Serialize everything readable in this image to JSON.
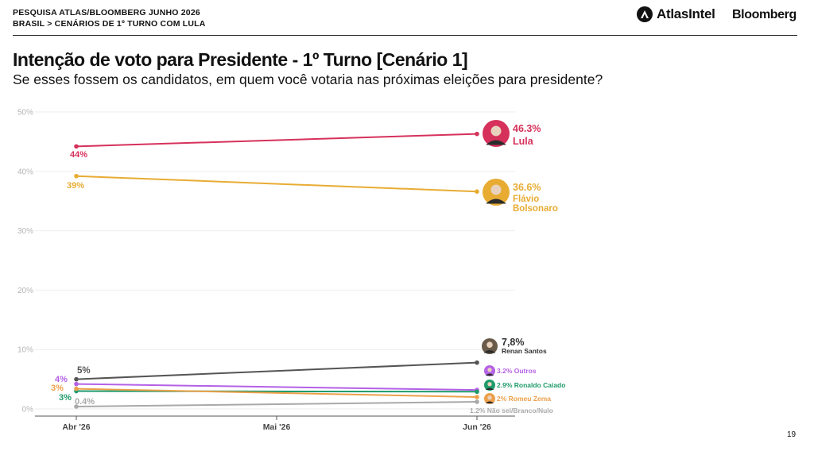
{
  "header": {
    "line1": "PESQUISA ATLAS/BLOOMBERG JUNHO 2026",
    "line2": "BRASIL > CENÁRIOS DE 1º TURNO COM LULA",
    "brand_atlas": "AtlasIntel",
    "brand_bloomberg": "Bloomberg"
  },
  "page_number": "19",
  "chart_data": {
    "type": "line",
    "title": "Intenção de voto para Presidente  - 1º Turno [Cenário 1]",
    "subtitle": "Se esses fossem os candidatos, em quem você votaria nas próximas eleições para presidente?",
    "x": [
      "Abr '26",
      "Mai '26",
      "Jun '26"
    ],
    "y_ticks": [
      "0%",
      "10%",
      "20%",
      "30%",
      "40%",
      "50%"
    ],
    "ylim": [
      0,
      50
    ],
    "grid": true,
    "series": [
      {
        "name": "Lula",
        "color": "#d6315b",
        "points": [
          [
            0,
            44.2
          ],
          [
            2,
            46.3
          ]
        ],
        "start_label": "44%",
        "end_label": "46.3%",
        "icon": "lula-avatar-icon"
      },
      {
        "name": "Flávio Bolsonaro",
        "color": "#e8ac33",
        "points": [
          [
            0,
            39.2
          ],
          [
            2,
            36.6
          ]
        ],
        "start_label": "39%",
        "end_label": "36.6%",
        "icon": "flavio-avatar-icon"
      },
      {
        "name": "Renan Santos",
        "color": "#555555",
        "points": [
          [
            0,
            5.0
          ],
          [
            2,
            7.8
          ]
        ],
        "start_label": "5%",
        "end_label": "7,8%",
        "icon": "renan-avatar-icon"
      },
      {
        "name": "Outros",
        "color": "#b461e6",
        "points": [
          [
            0,
            4.2
          ],
          [
            2,
            3.2
          ]
        ],
        "start_label": "4%",
        "end_label": "3.2%",
        "icon": "outros-avatar-icon"
      },
      {
        "name": "Ronaldo Caiado",
        "color": "#1e9a6b",
        "points": [
          [
            0,
            3.0
          ],
          [
            2,
            2.9
          ]
        ],
        "start_label": "3%",
        "end_label": "2.9%",
        "icon": "caiado-avatar-icon"
      },
      {
        "name": "Romeu Zema",
        "color": "#eda04a",
        "points": [
          [
            0,
            3.4
          ],
          [
            2,
            2.0
          ]
        ],
        "start_label": "3%",
        "end_label": "2%",
        "icon": "zema-avatar-icon"
      },
      {
        "name": "Não sei/Branco/Nulo",
        "color": "#a9a9a9",
        "points": [
          [
            0,
            0.4
          ],
          [
            2,
            1.2
          ]
        ],
        "start_label": "0.4%",
        "end_label": "1.2%"
      }
    ]
  }
}
